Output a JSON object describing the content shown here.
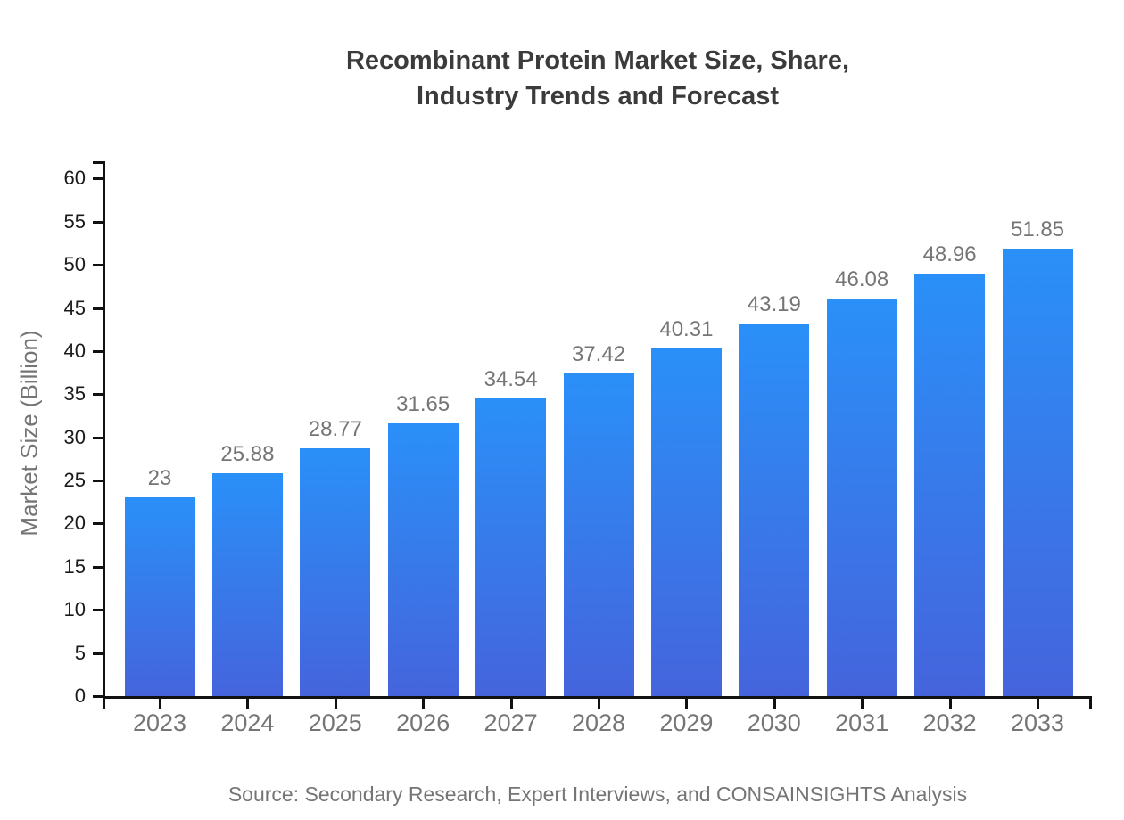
{
  "title": {
    "line1": "Recombinant Protein Market Size, Share,",
    "line2": "Industry Trends and Forecast"
  },
  "source_note": "Source: Secondary Research, Expert Interviews, and CONSAINSIGHTS Analysis",
  "chart_data": {
    "type": "bar",
    "title": "Recombinant Protein Market Size, Share, Industry Trends and Forecast",
    "categories": [
      "2023",
      "2024",
      "2025",
      "2026",
      "2027",
      "2028",
      "2029",
      "2030",
      "2031",
      "2032",
      "2033"
    ],
    "values": [
      23,
      25.88,
      28.77,
      31.65,
      34.54,
      37.42,
      40.31,
      43.19,
      46.08,
      48.96,
      51.85
    ],
    "value_labels": [
      "23",
      "25.88",
      "28.77",
      "31.65",
      "34.54",
      "37.42",
      "40.31",
      "43.19",
      "46.08",
      "48.96",
      "51.85"
    ],
    "xlabel": "",
    "ylabel": "Market Size (Billion)",
    "ylim": [
      0,
      62
    ],
    "yticks": [
      0,
      5,
      10,
      15,
      20,
      25,
      30,
      35,
      40,
      45,
      50,
      55,
      60
    ],
    "grid": false,
    "legend": false,
    "colors": {
      "bar_top": "#2a90f8",
      "bar_bottom": "#4564dc",
      "axis": "#111111",
      "y_tick_label": "#1a1a1a",
      "muted_text": "#757575",
      "title_text": "#3b3b3b",
      "background": "#ffffff"
    }
  }
}
